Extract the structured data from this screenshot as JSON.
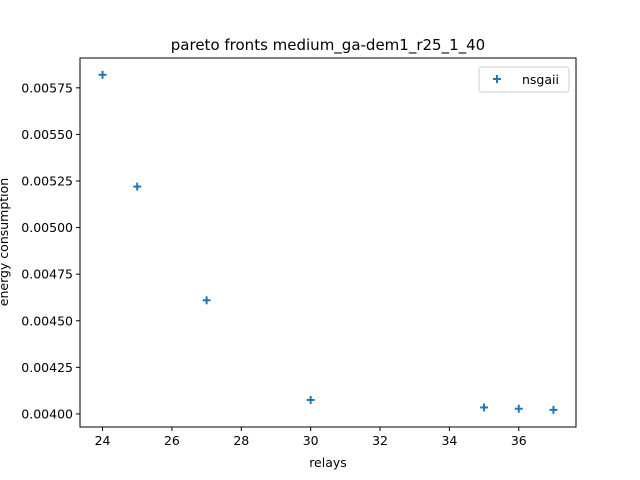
{
  "chart_data": {
    "type": "scatter",
    "title": "pareto fronts medium_ga-dem1_r25_1_40",
    "xlabel": "relays",
    "ylabel": "energy consumption",
    "xlim": [
      23.35,
      37.65
    ],
    "ylim": [
      0.00393,
      0.00591
    ],
    "xticks": [
      24,
      26,
      28,
      30,
      32,
      34,
      36
    ],
    "yticks": [
      0.004,
      0.00425,
      0.0045,
      0.00475,
      0.005,
      0.00525,
      0.0055,
      0.00575
    ],
    "xtick_labels": [
      "24",
      "26",
      "28",
      "30",
      "32",
      "34",
      "36"
    ],
    "ytick_labels": [
      "0.00400",
      "0.00425",
      "0.00450",
      "0.00475",
      "0.00500",
      "0.00525",
      "0.00550",
      "0.00575"
    ],
    "grid": false,
    "legend": {
      "position": "top-right"
    },
    "series": [
      {
        "name": "nsgaii",
        "marker": "plus",
        "color": "#1f77b4",
        "points": [
          {
            "x": 24,
            "y": 0.00582
          },
          {
            "x": 25,
            "y": 0.00522
          },
          {
            "x": 27,
            "y": 0.00461
          },
          {
            "x": 30,
            "y": 0.004075
          },
          {
            "x": 35,
            "y": 0.004035
          },
          {
            "x": 36,
            "y": 0.004028
          },
          {
            "x": 37,
            "y": 0.004022
          }
        ]
      }
    ]
  }
}
